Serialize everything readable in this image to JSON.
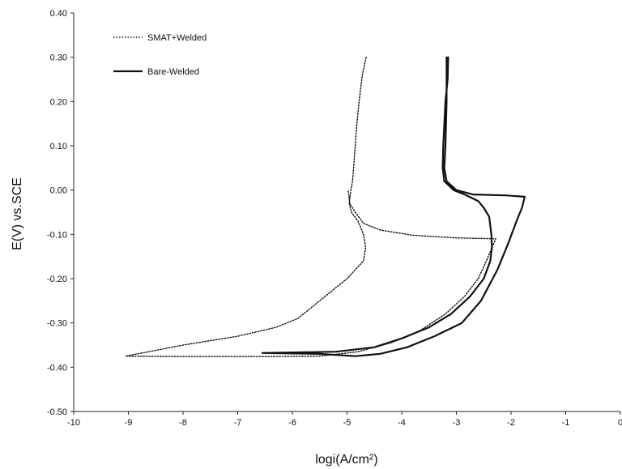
{
  "chart_data": {
    "type": "line",
    "title": "",
    "xlabel": "logi(A/cm²)",
    "ylabel": "E(V) vs.SCE",
    "xlim": [
      -10,
      0
    ],
    "ylim": [
      -0.5,
      0.4
    ],
    "x_ticks": [
      -10,
      -9,
      -8,
      -7,
      -6,
      -5,
      -4,
      -3,
      -2,
      -1,
      0
    ],
    "x_tick_labels": [
      "-10",
      "-9",
      "-8",
      "-7",
      "-6",
      "-5",
      "-4",
      "-3",
      "-2",
      "-1",
      "0"
    ],
    "y_ticks": [
      0.4,
      0.3,
      0.2,
      0.1,
      0.0,
      -0.1,
      -0.2,
      -0.3,
      -0.4,
      -0.5
    ],
    "y_tick_labels": [
      "0.40",
      "0.30",
      "0.20",
      "0.10",
      "0.00",
      "-0.10",
      "-0.20",
      "-0.30",
      "-0.40",
      "-0.50"
    ],
    "grid": false,
    "legend_position": "top-left",
    "series": [
      {
        "name": "SMAT+Welded",
        "style": "dotted",
        "color": "#111111",
        "points": [
          [
            -4.65,
            0.3
          ],
          [
            -4.72,
            0.26
          ],
          [
            -4.78,
            0.2
          ],
          [
            -4.82,
            0.15
          ],
          [
            -4.85,
            0.1
          ],
          [
            -4.88,
            0.05
          ],
          [
            -4.9,
            0.02
          ],
          [
            -4.93,
            0.0
          ],
          [
            -4.96,
            -0.03
          ],
          [
            -4.92,
            -0.05
          ],
          [
            -4.8,
            -0.07
          ],
          [
            -4.7,
            -0.1
          ],
          [
            -4.66,
            -0.13
          ],
          [
            -4.7,
            -0.16
          ],
          [
            -4.85,
            -0.18
          ],
          [
            -5.0,
            -0.2
          ],
          [
            -5.2,
            -0.22
          ],
          [
            -5.5,
            -0.25
          ],
          [
            -5.9,
            -0.29
          ],
          [
            -6.3,
            -0.31
          ],
          [
            -7.0,
            -0.33
          ],
          [
            -8.0,
            -0.35
          ],
          [
            -9.05,
            -0.375
          ],
          [
            -8.0,
            -0.376
          ],
          [
            -6.5,
            -0.376
          ],
          [
            -5.5,
            -0.375
          ],
          [
            -4.8,
            -0.365
          ],
          [
            -4.2,
            -0.345
          ],
          [
            -3.7,
            -0.32
          ],
          [
            -3.2,
            -0.28
          ],
          [
            -2.85,
            -0.24
          ],
          [
            -2.6,
            -0.2
          ],
          [
            -2.45,
            -0.16
          ],
          [
            -2.35,
            -0.13
          ],
          [
            -2.28,
            -0.11
          ],
          [
            -3.0,
            -0.108
          ],
          [
            -3.8,
            -0.102
          ],
          [
            -4.4,
            -0.09
          ],
          [
            -4.7,
            -0.075
          ],
          [
            -4.85,
            -0.05
          ],
          [
            -4.95,
            -0.03
          ],
          [
            -4.98,
            0.0
          ]
        ]
      },
      {
        "name": "Bare-Welded",
        "style": "solid",
        "color": "#111111",
        "points": [
          [
            -3.15,
            0.3
          ],
          [
            -3.16,
            0.25
          ],
          [
            -3.2,
            0.2
          ],
          [
            -3.24,
            0.1
          ],
          [
            -3.25,
            0.05
          ],
          [
            -3.22,
            0.02
          ],
          [
            -3.05,
            0.0
          ],
          [
            -2.85,
            -0.01
          ],
          [
            -2.6,
            -0.025
          ],
          [
            -2.5,
            -0.04
          ],
          [
            -2.4,
            -0.06
          ],
          [
            -2.36,
            -0.1
          ],
          [
            -2.35,
            -0.13
          ],
          [
            -2.38,
            -0.16
          ],
          [
            -2.5,
            -0.2
          ],
          [
            -2.75,
            -0.24
          ],
          [
            -3.1,
            -0.28
          ],
          [
            -3.5,
            -0.31
          ],
          [
            -4.0,
            -0.335
          ],
          [
            -4.5,
            -0.355
          ],
          [
            -5.2,
            -0.365
          ],
          [
            -6.55,
            -0.368
          ],
          [
            -5.5,
            -0.37
          ],
          [
            -4.85,
            -0.375
          ],
          [
            -4.4,
            -0.37
          ],
          [
            -3.9,
            -0.355
          ],
          [
            -3.4,
            -0.33
          ],
          [
            -2.9,
            -0.3
          ],
          [
            -2.55,
            -0.25
          ],
          [
            -2.25,
            -0.18
          ],
          [
            -2.05,
            -0.12
          ],
          [
            -1.9,
            -0.07
          ],
          [
            -1.8,
            -0.04
          ],
          [
            -1.75,
            -0.015
          ],
          [
            -2.1,
            -0.012
          ],
          [
            -2.7,
            -0.01
          ],
          [
            -3.0,
            0.0
          ],
          [
            -3.18,
            0.02
          ],
          [
            -3.22,
            0.05
          ],
          [
            -3.2,
            0.1
          ],
          [
            -3.18,
            0.2
          ],
          [
            -3.18,
            0.3
          ]
        ]
      }
    ]
  }
}
